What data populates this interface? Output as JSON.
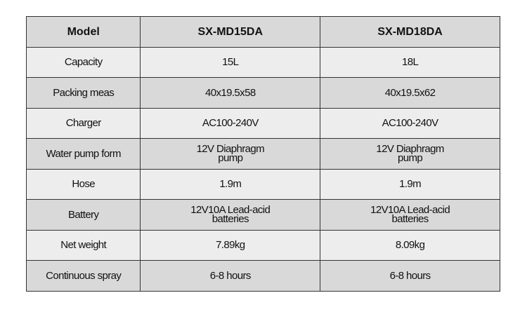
{
  "table": {
    "header": [
      "Model",
      "SX-MD15DA",
      "SX-MD18DA"
    ],
    "rows": [
      [
        "Capacity",
        "15L",
        "18L"
      ],
      [
        "Packing meas",
        "40x19.5x58",
        "40x19.5x62"
      ],
      [
        "Charger",
        "AC100-240V",
        "AC100-240V"
      ],
      [
        "Water pump form",
        [
          "12V Diaphragm",
          "pump"
        ],
        [
          "12V Diaphragm",
          "pump"
        ]
      ],
      [
        "Hose",
        "1.9m",
        "1.9m"
      ],
      [
        "Battery",
        [
          "12V10A Lead-acid",
          "batteries"
        ],
        [
          "12V10A Lead-acid",
          "batteries"
        ]
      ],
      [
        "Net weight",
        "7.89kg",
        "8.09kg"
      ],
      [
        "Continuous spray",
        "6-8 hours",
        "6-8 hours"
      ]
    ]
  }
}
